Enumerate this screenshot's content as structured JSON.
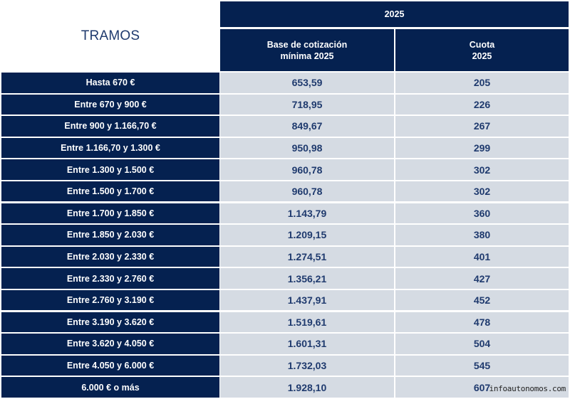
{
  "title": "TRAMOS",
  "header": {
    "year": "2025",
    "base_line1": "Base de cotización",
    "base_line2": "mínima 2025",
    "cuota_line1": "Cuota",
    "cuota_line2": "2025"
  },
  "rows": [
    {
      "tramo": "Hasta 670 €",
      "base": "653,59",
      "cuota": "205"
    },
    {
      "tramo": "Entre 670 y 900 €",
      "base": "718,95",
      "cuota": "226"
    },
    {
      "tramo": "Entre 900 y 1.166,70 €",
      "base": "849,67",
      "cuota": "267"
    },
    {
      "tramo": "Entre 1.166,70 y 1.300 €",
      "base": "950,98",
      "cuota": "299"
    },
    {
      "tramo": "Entre 1.300 y 1.500 €",
      "base": "960,78",
      "cuota": "302"
    },
    {
      "tramo": "Entre 1.500 y 1.700 €",
      "base": "960,78",
      "cuota": "302"
    },
    {
      "tramo": "Entre 1.700 y 1.850 €",
      "base": "1.143,79",
      "cuota": "360"
    },
    {
      "tramo": "Entre 1.850 y 2.030 €",
      "base": "1.209,15",
      "cuota": "380"
    },
    {
      "tramo": "Entre 2.030 y 2.330 €",
      "base": "1.274,51",
      "cuota": "401"
    },
    {
      "tramo": "Entre 2.330 y 2.760 €",
      "base": "1.356,21",
      "cuota": "427"
    },
    {
      "tramo": "Entre 2.760 y 3.190 €",
      "base": "1.437,91",
      "cuota": "452"
    },
    {
      "tramo": "Entre 3.190 y 3.620 €",
      "base": "1.519,61",
      "cuota": "478"
    },
    {
      "tramo": "Entre 3.620 y 4.050 €",
      "base": "1.601,31",
      "cuota": "504"
    },
    {
      "tramo": "Entre 4.050 y 6.000 €",
      "base": "1.732,03",
      "cuota": "545"
    },
    {
      "tramo": "6.000 € o más",
      "base": "1.928,10",
      "cuota": "607"
    }
  ],
  "watermark": "infoautonomos.com",
  "colors": {
    "header_bg": "#052150",
    "cell_bg": "#d5dbe3",
    "value_text": "#1f3a6e"
  }
}
